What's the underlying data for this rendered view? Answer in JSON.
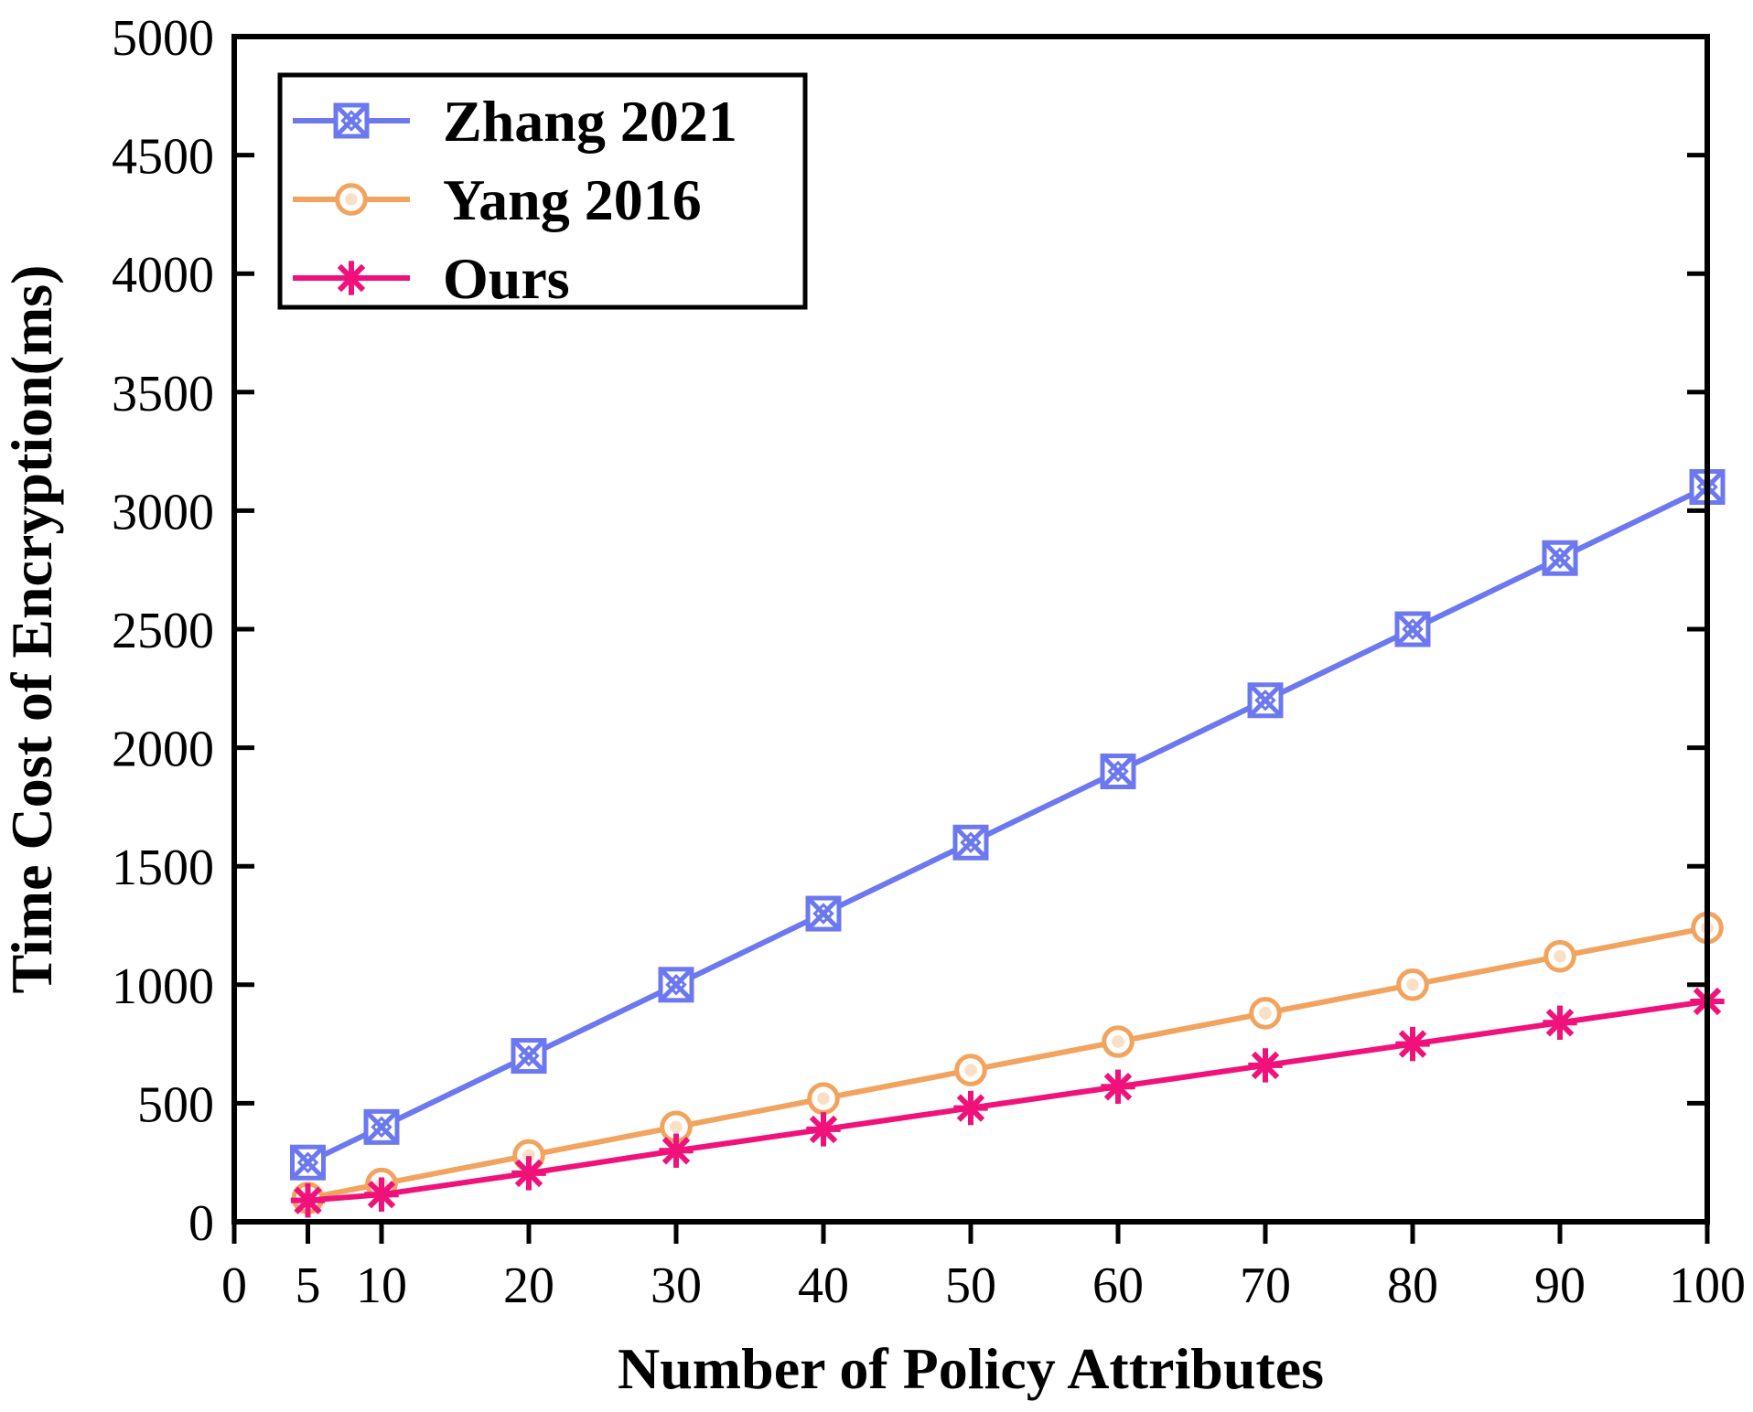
{
  "chart_data": {
    "type": "line",
    "title": "",
    "xlabel": "Number of Policy Attributes",
    "ylabel": "Time Cost of Encryption(ms)",
    "x": [
      5,
      10,
      20,
      30,
      40,
      50,
      60,
      70,
      80,
      90,
      100
    ],
    "xlim": [
      0,
      100
    ],
    "ylim": [
      0,
      5000
    ],
    "xticks": [
      0,
      5,
      10,
      20,
      30,
      40,
      50,
      60,
      70,
      80,
      90,
      100
    ],
    "xtick_labels": [
      "0",
      "5",
      "10",
      "20",
      "30",
      "40",
      "50",
      "60",
      "70",
      "80",
      "90",
      "100"
    ],
    "yticks": [
      0,
      500,
      1000,
      1500,
      2000,
      2500,
      3000,
      3500,
      4000,
      4500,
      5000
    ],
    "ytick_labels": [
      "0",
      "500",
      "1000",
      "1500",
      "2000",
      "2500",
      "3000",
      "3500",
      "4000",
      "4500",
      "5000"
    ],
    "grid": false,
    "legend_position": "top-left",
    "series": [
      {
        "name": "Zhang 2021",
        "color": "#6b78f0",
        "marker": "crossed-square",
        "values": [
          250,
          400,
          700,
          1000,
          1300,
          1600,
          1900,
          2200,
          2500,
          2800,
          3100
        ]
      },
      {
        "name": "Yang 2016",
        "color": "#f2a35e",
        "marker": "circle",
        "values": [
          100,
          160,
          280,
          400,
          520,
          640,
          760,
          880,
          1000,
          1120,
          1240
        ]
      },
      {
        "name": "Ours",
        "color": "#f0117a",
        "marker": "asterisk",
        "values": [
          90,
          115,
          205,
          300,
          390,
          480,
          570,
          660,
          750,
          840,
          930
        ]
      }
    ]
  }
}
